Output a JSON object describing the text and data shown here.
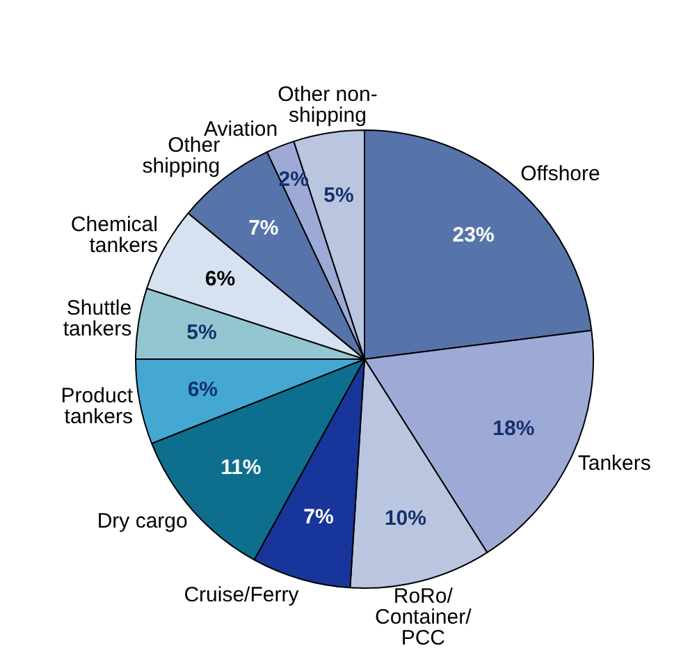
{
  "chart_data": {
    "type": "pie",
    "categories": [
      "Offshore",
      "Tankers",
      "RoRo/Container/PCC",
      "Cruise/Ferry",
      "Dry cargo",
      "Product tankers",
      "Shuttle tankers",
      "Chemical tankers",
      "Other shipping",
      "Aviation",
      "Other non-shipping"
    ],
    "values": [
      23,
      18,
      10,
      7,
      11,
      6,
      5,
      6,
      7,
      2,
      5
    ],
    "colors": [
      "#5674aa",
      "#9eaad6",
      "#bac6e0",
      "#17359a",
      "#0e6e8e",
      "#44a8d2",
      "#94c6d2",
      "#d6e2ef",
      "#5674aa",
      "#9eaad6",
      "#bac6e0"
    ],
    "value_labels": [
      "23%",
      "18%",
      "10%",
      "7%",
      "11%",
      "6%",
      "5%",
      "6%",
      "7%",
      "2%",
      "5%"
    ],
    "legend": false
  }
}
